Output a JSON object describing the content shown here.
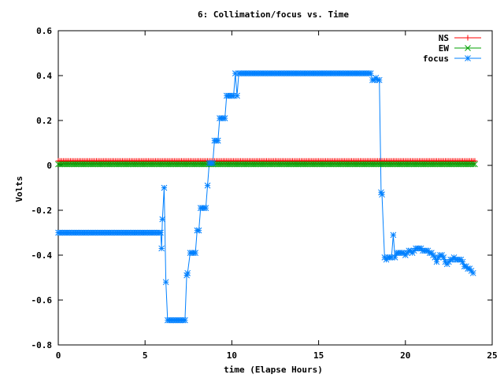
{
  "chart_data": {
    "type": "line",
    "title": "6: Collimation/focus vs. Time",
    "xlabel": "time (Elapse Hours)",
    "ylabel": "Volts",
    "xlim": [
      0,
      25
    ],
    "ylim": [
      -0.8,
      0.6
    ],
    "xticks": [
      0,
      5,
      10,
      15,
      20,
      25
    ],
    "yticks": [
      -0.8,
      -0.6,
      -0.4,
      -0.2,
      0,
      0.2,
      0.4,
      0.6
    ],
    "xtick_labels": [
      "0",
      "5",
      "10",
      "15",
      "20",
      "25"
    ],
    "ytick_labels": [
      "-0.8",
      "-0.6",
      "-0.4",
      "-0.2",
      "0",
      "0.2",
      "0.4",
      "0.6"
    ],
    "grid": false,
    "legend_position": "top-right",
    "series": [
      {
        "name": "NS",
        "color": "#ff0000",
        "marker": "plus",
        "segments": [
          {
            "from": 0,
            "to": 24,
            "step": 0.1,
            "value": 0.02
          }
        ]
      },
      {
        "name": "EW",
        "color": "#00a000",
        "marker": "cross",
        "segments": [
          {
            "from": 0,
            "to": 24,
            "step": 0.1,
            "value": 0.005
          }
        ]
      },
      {
        "name": "focus",
        "color": "#0080ff",
        "marker": "star",
        "segments": [
          {
            "from": 0,
            "to": 5.8,
            "step": 0.1,
            "value": -0.3
          },
          {
            "from": 6.4,
            "to": 7.2,
            "step": 0.1,
            "value": -0.69
          },
          {
            "from": 10.4,
            "to": 18,
            "step": 0.1,
            "value": 0.41
          }
        ],
        "points": [
          [
            5.9,
            -0.3
          ],
          [
            5.95,
            -0.37
          ],
          [
            6.0,
            -0.24
          ],
          [
            6.1,
            -0.1
          ],
          [
            6.2,
            -0.52
          ],
          [
            6.3,
            -0.69
          ],
          [
            7.3,
            -0.69
          ],
          [
            7.4,
            -0.49
          ],
          [
            7.45,
            -0.48
          ],
          [
            7.6,
            -0.39
          ],
          [
            7.7,
            -0.39
          ],
          [
            7.8,
            -0.39
          ],
          [
            7.9,
            -0.39
          ],
          [
            8.0,
            -0.29
          ],
          [
            8.1,
            -0.29
          ],
          [
            8.2,
            -0.19
          ],
          [
            8.3,
            -0.19
          ],
          [
            8.4,
            -0.19
          ],
          [
            8.5,
            -0.19
          ],
          [
            8.6,
            -0.09
          ],
          [
            8.7,
            0.01
          ],
          [
            8.8,
            0.01
          ],
          [
            8.9,
            0.01
          ],
          [
            9.0,
            0.11
          ],
          [
            9.1,
            0.11
          ],
          [
            9.2,
            0.11
          ],
          [
            9.3,
            0.21
          ],
          [
            9.4,
            0.21
          ],
          [
            9.5,
            0.21
          ],
          [
            9.6,
            0.21
          ],
          [
            9.7,
            0.31
          ],
          [
            9.8,
            0.31
          ],
          [
            9.9,
            0.31
          ],
          [
            10.0,
            0.31
          ],
          [
            10.1,
            0.31
          ],
          [
            10.2,
            0.41
          ],
          [
            10.3,
            0.31
          ],
          [
            18.1,
            0.38
          ],
          [
            18.2,
            0.38
          ],
          [
            18.3,
            0.39
          ],
          [
            18.4,
            0.38
          ],
          [
            18.5,
            0.38
          ],
          [
            18.6,
            -0.12
          ],
          [
            18.65,
            -0.13
          ],
          [
            18.8,
            -0.41
          ],
          [
            18.9,
            -0.42
          ],
          [
            19.0,
            -0.41
          ],
          [
            19.1,
            -0.41
          ],
          [
            19.2,
            -0.41
          ],
          [
            19.3,
            -0.31
          ],
          [
            19.4,
            -0.41
          ],
          [
            19.5,
            -0.39
          ],
          [
            19.6,
            -0.39
          ],
          [
            19.7,
            -0.39
          ],
          [
            19.8,
            -0.39
          ],
          [
            19.9,
            -0.39
          ],
          [
            20.0,
            -0.4
          ],
          [
            20.1,
            -0.39
          ],
          [
            20.2,
            -0.38
          ],
          [
            20.3,
            -0.38
          ],
          [
            20.4,
            -0.39
          ],
          [
            20.5,
            -0.38
          ],
          [
            20.6,
            -0.37
          ],
          [
            20.7,
            -0.37
          ],
          [
            20.8,
            -0.37
          ],
          [
            20.9,
            -0.37
          ],
          [
            21.0,
            -0.38
          ],
          [
            21.1,
            -0.38
          ],
          [
            21.2,
            -0.38
          ],
          [
            21.3,
            -0.38
          ],
          [
            21.4,
            -0.39
          ],
          [
            21.5,
            -0.39
          ],
          [
            21.6,
            -0.4
          ],
          [
            21.7,
            -0.41
          ],
          [
            21.8,
            -0.43
          ],
          [
            21.9,
            -0.41
          ],
          [
            22.0,
            -0.4
          ],
          [
            22.1,
            -0.4
          ],
          [
            22.2,
            -0.41
          ],
          [
            22.3,
            -0.43
          ],
          [
            22.4,
            -0.44
          ],
          [
            22.5,
            -0.43
          ],
          [
            22.6,
            -0.42
          ],
          [
            22.7,
            -0.42
          ],
          [
            22.8,
            -0.41
          ],
          [
            22.9,
            -0.42
          ],
          [
            23.0,
            -0.42
          ],
          [
            23.1,
            -0.42
          ],
          [
            23.2,
            -0.42
          ],
          [
            23.3,
            -0.43
          ],
          [
            23.4,
            -0.45
          ],
          [
            23.5,
            -0.45
          ],
          [
            23.6,
            -0.46
          ],
          [
            23.7,
            -0.46
          ],
          [
            23.8,
            -0.47
          ],
          [
            23.9,
            -0.48
          ]
        ]
      }
    ]
  }
}
